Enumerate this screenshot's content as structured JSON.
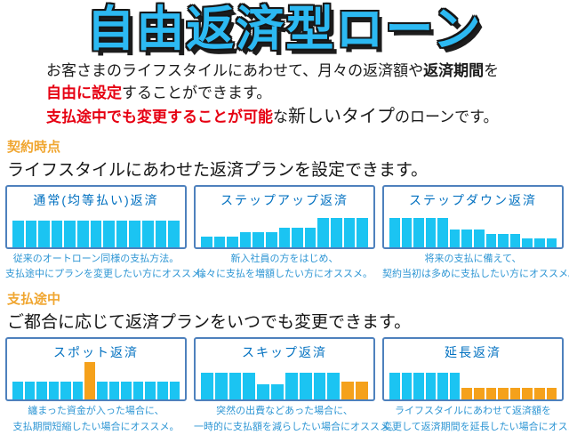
{
  "page": {
    "title": "自由返済型ローン"
  },
  "intro": {
    "line1_pre": "お客さまのライフスタイルにあわせて、月々の返済額や",
    "line1_bold": "返済期間",
    "line1_post": "を",
    "line2_red": "自由に設定",
    "line2_rest": "することができます。",
    "line3_red": "支払途中でも変更することが可能",
    "line3_mid": "な",
    "line3_big": "新しいタイプ",
    "line3_rest": "のローンです。"
  },
  "sections": [
    {
      "heading": "契約時点",
      "subheading": "ライフスタイルにあわせた返済プランを設定できます。",
      "cards": [
        {
          "title": "通常(均等払い)返済",
          "caption1": "従来のオートローン同様の支払方法。",
          "caption2": "支払途中にプランを変更したい方にオススメ。",
          "bars": [
            [
              30,
              "c"
            ],
            [
              30,
              "c"
            ],
            [
              30,
              "c"
            ],
            [
              30,
              "c"
            ],
            [
              30,
              "c"
            ],
            [
              30,
              "c"
            ],
            [
              30,
              "c"
            ],
            [
              30,
              "c"
            ],
            [
              30,
              "c"
            ],
            [
              30,
              "c"
            ],
            [
              30,
              "c"
            ],
            [
              30,
              "c"
            ],
            [
              30,
              "c"
            ]
          ]
        },
        {
          "title": "ステップアップ返済",
          "caption1": "新入社員の方をはじめ、",
          "caption2": "徐々に支払を増額したい方にオススメ。",
          "bars": [
            [
              12,
              "c"
            ],
            [
              12,
              "c"
            ],
            [
              12,
              "c"
            ],
            [
              17,
              "c"
            ],
            [
              17,
              "c"
            ],
            [
              17,
              "c"
            ],
            [
              22,
              "c"
            ],
            [
              22,
              "c"
            ],
            [
              22,
              "c"
            ],
            [
              33,
              "c"
            ],
            [
              33,
              "c"
            ],
            [
              33,
              "c"
            ],
            [
              33,
              "c"
            ]
          ]
        },
        {
          "title": "ステップダウン返済",
          "caption1": "将来の支払に備えて、",
          "caption2": "契約当初は多めに支払したい方にオススメ。",
          "bars": [
            [
              33,
              "c"
            ],
            [
              33,
              "c"
            ],
            [
              33,
              "c"
            ],
            [
              33,
              "c"
            ],
            [
              33,
              "c"
            ],
            [
              20,
              "c"
            ],
            [
              20,
              "c"
            ],
            [
              20,
              "c"
            ],
            [
              15,
              "c"
            ],
            [
              15,
              "c"
            ],
            [
              15,
              "c"
            ],
            [
              10,
              "c"
            ],
            [
              10,
              "c"
            ],
            [
              10,
              "c"
            ]
          ]
        }
      ]
    },
    {
      "heading": "支払途中",
      "subheading": "ご都合に応じて返済プランをいつでも変更できます。",
      "cards": [
        {
          "title": "スポット返済",
          "caption1": "纏まった資金が入った場合に、",
          "caption2": "支払期間短縮したい場合にオススメ。",
          "bars": [
            [
              20,
              "c"
            ],
            [
              20,
              "c"
            ],
            [
              20,
              "c"
            ],
            [
              20,
              "c"
            ],
            [
              20,
              "c"
            ],
            [
              20,
              "c"
            ],
            [
              42,
              "o"
            ],
            [
              20,
              "c"
            ],
            [
              20,
              "c"
            ],
            [
              20,
              "c"
            ],
            [
              20,
              "c"
            ],
            [
              20,
              "c"
            ],
            [
              20,
              "c"
            ],
            [
              20,
              "c"
            ]
          ]
        },
        {
          "title": "スキップ返済",
          "caption1": "突然の出費などあった場合に、",
          "caption2": "一時的に支払額を減らしたい場合にオススメ。",
          "bars": [
            [
              30,
              "c"
            ],
            [
              30,
              "c"
            ],
            [
              30,
              "c"
            ],
            [
              30,
              "c"
            ],
            [
              17,
              "c"
            ],
            [
              17,
              "c"
            ],
            [
              30,
              "c"
            ],
            [
              30,
              "c"
            ],
            [
              30,
              "c"
            ],
            [
              30,
              "c"
            ],
            [
              20,
              "o"
            ],
            [
              20,
              "o"
            ]
          ]
        },
        {
          "title": "延長返済",
          "caption1": "ライフスタイルにあわせて返済額を",
          "caption2": "変更して返済期間を延長したい場合にオススメ。",
          "bars": [
            [
              30,
              "c"
            ],
            [
              30,
              "c"
            ],
            [
              30,
              "c"
            ],
            [
              30,
              "c"
            ],
            [
              30,
              "c"
            ],
            [
              30,
              "c"
            ],
            [
              13,
              "o"
            ],
            [
              13,
              "o"
            ],
            [
              13,
              "o"
            ],
            [
              13,
              "o"
            ],
            [
              13,
              "o"
            ],
            [
              13,
              "o"
            ],
            [
              13,
              "o"
            ],
            [
              13,
              "o"
            ]
          ]
        }
      ]
    }
  ],
  "colors": {
    "bar_cyan": "#1BC4F2",
    "bar_orange": "#F5A11B",
    "card_border": "#4E81BD",
    "card_title_blue": "#0070C0",
    "caption_blue": "#2E96D4",
    "heading_orange": "#F0A630",
    "accent_red": "#E60012",
    "title_cyan": "#2CB9F2"
  }
}
